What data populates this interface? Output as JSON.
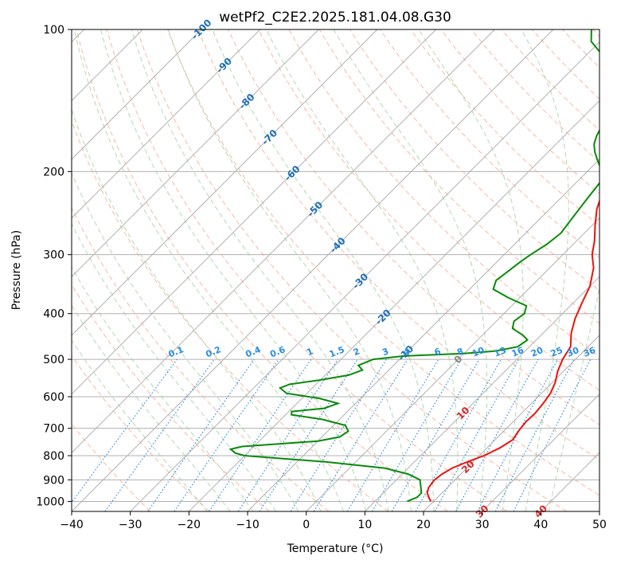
{
  "chart_data": {
    "type": "line",
    "title": "wetPf2_C2E2.2025.181.04.08.G30",
    "xlabel": "Temperature (°C)",
    "ylabel": "Pressure (hPa)",
    "xlim": [
      -40,
      50
    ],
    "ylim": [
      1050,
      100
    ],
    "y_scale": "log",
    "grid": true,
    "x_ticks": [
      -40,
      -30,
      -20,
      -10,
      0,
      10,
      20,
      30,
      40,
      50
    ],
    "y_ticks": [
      100,
      200,
      300,
      400,
      500,
      600,
      700,
      800,
      900,
      1000
    ],
    "skew_T": true,
    "isotherm_labels": [
      "-100",
      "-90",
      "-80",
      "-70",
      "-60",
      "-50",
      "-40",
      "-30",
      "-20",
      "-10",
      "0",
      "10",
      "20",
      "30",
      "40"
    ],
    "mixing_ratio_labels": [
      "0.1",
      "0.2",
      "0.4",
      "0.6",
      "1",
      "1.5",
      "2",
      "3",
      "4",
      "6",
      "8",
      "10",
      "13",
      "16",
      "20",
      "25",
      "30",
      "36"
    ],
    "colors": {
      "temperature": "#e8140e",
      "dewpoint": "#0a8a0a",
      "isotherm_label_cold": "#1f6fb4",
      "isotherm_label_warm": "#d62728",
      "mixing_ratio": "#2a8de0",
      "dry_adiabat": "#f7a58a",
      "moist_adiabat": "#9ccf9c",
      "grid": "#b0b0b0"
    },
    "series": [
      {
        "key": "temperature",
        "points": [
          [
            19.5,
            1000
          ],
          [
            18.5,
            980
          ],
          [
            17.5,
            960
          ],
          [
            16.8,
            935
          ],
          [
            16.5,
            900
          ],
          [
            16.8,
            875
          ],
          [
            17.5,
            850
          ],
          [
            19.0,
            825
          ],
          [
            20.8,
            800
          ],
          [
            22.2,
            770
          ],
          [
            23.0,
            740
          ],
          [
            22.5,
            710
          ],
          [
            22.2,
            680
          ],
          [
            22.3,
            650
          ],
          [
            22.0,
            620
          ],
          [
            21.5,
            590
          ],
          [
            20.5,
            560
          ],
          [
            19.0,
            530
          ],
          [
            17.8,
            500
          ],
          [
            17.0,
            470
          ],
          [
            14.8,
            440
          ],
          [
            13.0,
            410
          ],
          [
            11.5,
            380
          ],
          [
            10.0,
            350
          ],
          [
            7.5,
            320
          ],
          [
            5.0,
            300
          ],
          [
            3.0,
            280
          ],
          [
            0.5,
            260
          ],
          [
            -2.0,
            240
          ],
          [
            -4.0,
            220
          ],
          [
            -6.0,
            200
          ],
          [
            -8.5,
            185
          ],
          [
            -11.0,
            175
          ],
          [
            -12.5,
            165
          ],
          [
            -13.5,
            155
          ],
          [
            -14.0,
            145
          ],
          [
            -15.5,
            137
          ],
          [
            -19.0,
            128
          ],
          [
            -22.0,
            120
          ],
          [
            -26.0,
            112
          ],
          [
            -29.0,
            105
          ],
          [
            -31.0,
            100
          ]
        ]
      },
      {
        "key": "dewpoint",
        "points": [
          [
            15.5,
            1000
          ],
          [
            16.5,
            980
          ],
          [
            16.5,
            960
          ],
          [
            15.5,
            935
          ],
          [
            14.0,
            900
          ],
          [
            11.0,
            875
          ],
          [
            6.0,
            850
          ],
          [
            -5.0,
            825
          ],
          [
            -20.0,
            800
          ],
          [
            -22.0,
            790
          ],
          [
            -23.5,
            775
          ],
          [
            -22.0,
            765
          ],
          [
            -16.0,
            755
          ],
          [
            -10.0,
            745
          ],
          [
            -7.0,
            730
          ],
          [
            -6.5,
            710
          ],
          [
            -8.0,
            690
          ],
          [
            -13.0,
            670
          ],
          [
            -19.0,
            655
          ],
          [
            -19.5,
            645
          ],
          [
            -14.5,
            635
          ],
          [
            -13.0,
            620
          ],
          [
            -17.0,
            605
          ],
          [
            -23.5,
            590
          ],
          [
            -25.5,
            575
          ],
          [
            -24.5,
            565
          ],
          [
            -20.0,
            553
          ],
          [
            -16.0,
            540
          ],
          [
            -14.5,
            527
          ],
          [
            -16.0,
            515
          ],
          [
            -14.5,
            500
          ],
          [
            -10.0,
            492
          ],
          [
            0.0,
            486
          ],
          [
            5.0,
            480
          ],
          [
            8.0,
            470
          ],
          [
            8.5,
            455
          ],
          [
            7.0,
            445
          ],
          [
            4.0,
            430
          ],
          [
            3.0,
            415
          ],
          [
            3.5,
            400
          ],
          [
            2.5,
            385
          ],
          [
            -2.0,
            370
          ],
          [
            -6.0,
            355
          ],
          [
            -7.0,
            340
          ],
          [
            -6.5,
            325
          ],
          [
            -6.0,
            310
          ],
          [
            -5.5,
            300
          ],
          [
            -4.5,
            285
          ],
          [
            -4.0,
            270
          ],
          [
            -4.5,
            255
          ],
          [
            -5.0,
            240
          ],
          [
            -5.5,
            225
          ],
          [
            -6.0,
            210
          ],
          [
            -7.5,
            200
          ],
          [
            -10.0,
            190
          ],
          [
            -12.0,
            182
          ],
          [
            -13.5,
            175
          ],
          [
            -14.5,
            168
          ],
          [
            -15.5,
            158
          ],
          [
            -16.5,
            150
          ],
          [
            -18.0,
            142
          ],
          [
            -19.5,
            134
          ],
          [
            -21.0,
            126
          ],
          [
            -23.5,
            118
          ],
          [
            -28.0,
            112
          ],
          [
            -31.5,
            106
          ],
          [
            -33.5,
            100
          ]
        ]
      }
    ]
  }
}
